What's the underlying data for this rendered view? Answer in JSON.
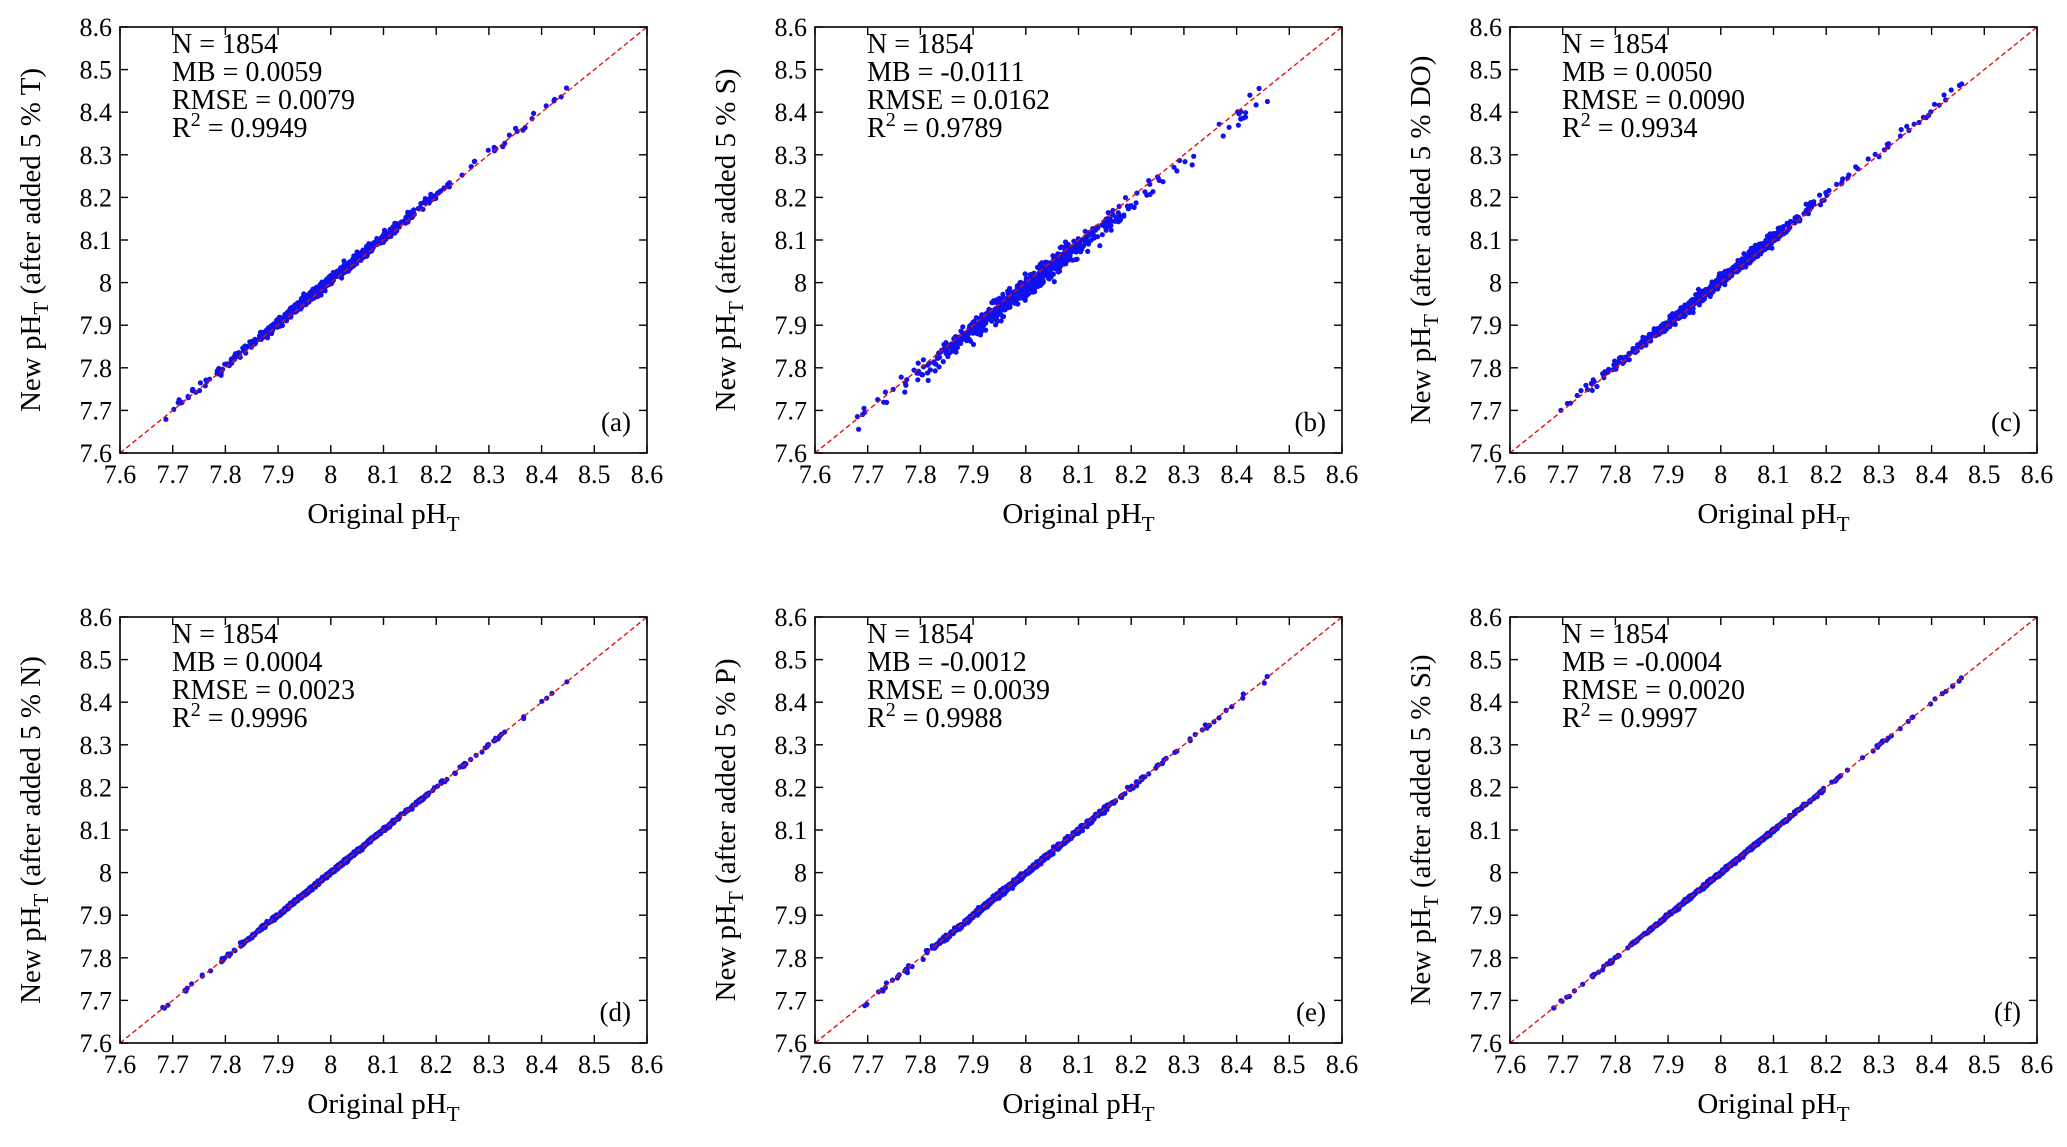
{
  "chart_data": [
    {
      "type": "scatter",
      "panel_label": "(a)",
      "variable": "T",
      "xlabel": "Original pH",
      "xlabel_sub": "T",
      "ylabel_pre": "New pH",
      "ylabel_sub": "T",
      "ylabel_post": " (after added 5 % T)",
      "xlim": [
        7.6,
        8.6
      ],
      "ylim": [
        7.6,
        8.6
      ],
      "xticks": [
        "7.6",
        "7.7",
        "7.8",
        "7.9",
        "8",
        "8.1",
        "8.2",
        "8.3",
        "8.4",
        "8.5",
        "8.6"
      ],
      "yticks": [
        "7.6",
        "7.7",
        "7.8",
        "7.9",
        "8",
        "8.1",
        "8.2",
        "8.3",
        "8.4",
        "8.5",
        "8.6"
      ],
      "stats": {
        "n": "N = 1854",
        "mb": "MB = 0.0059",
        "rmse": "RMSE = 0.0079",
        "r2_pre": "R",
        "r2_sup": "2",
        "r2_post": " = 0.9949"
      },
      "reference_line": "1:1",
      "scatter_spread": 0.006,
      "scatter_bias": 0.0059
    },
    {
      "type": "scatter",
      "panel_label": "(b)",
      "variable": "S",
      "xlabel": "Original pH",
      "xlabel_sub": "T",
      "ylabel_pre": "New pH",
      "ylabel_sub": "T",
      "ylabel_post": " (after added 5 % S)",
      "xlim": [
        7.6,
        8.6
      ],
      "ylim": [
        7.6,
        8.6
      ],
      "xticks": [
        "7.6",
        "7.7",
        "7.8",
        "7.9",
        "8",
        "8.1",
        "8.2",
        "8.3",
        "8.4",
        "8.5",
        "8.6"
      ],
      "yticks": [
        "7.6",
        "7.7",
        "7.8",
        "7.9",
        "8",
        "8.1",
        "8.2",
        "8.3",
        "8.4",
        "8.5",
        "8.6"
      ],
      "stats": {
        "n": "N = 1854",
        "mb": "MB = -0.0111",
        "rmse": "RMSE = 0.0162",
        "r2_pre": "R",
        "r2_sup": "2",
        "r2_post": " = 0.9789"
      },
      "reference_line": "1:1",
      "scatter_spread": 0.012,
      "scatter_bias": -0.0111
    },
    {
      "type": "scatter",
      "panel_label": "(c)",
      "variable": "DO",
      "xlabel": "Original pH",
      "xlabel_sub": "T",
      "ylabel_pre": "New pH",
      "ylabel_sub": "T",
      "ylabel_post": " (after added 5 % DO)",
      "xlim": [
        7.6,
        8.6
      ],
      "ylim": [
        7.6,
        8.6
      ],
      "xticks": [
        "7.6",
        "7.7",
        "7.8",
        "7.9",
        "8",
        "8.1",
        "8.2",
        "8.3",
        "8.4",
        "8.5",
        "8.6"
      ],
      "yticks": [
        "7.6",
        "7.7",
        "7.8",
        "7.9",
        "8",
        "8.1",
        "8.2",
        "8.3",
        "8.4",
        "8.5",
        "8.6"
      ],
      "stats": {
        "n": "N = 1854",
        "mb": "MB = 0.0050",
        "rmse": "RMSE = 0.0090",
        "r2_pre": "R",
        "r2_sup": "2",
        "r2_post": " = 0.9934"
      },
      "reference_line": "1:1",
      "scatter_spread": 0.007,
      "scatter_bias": 0.005
    },
    {
      "type": "scatter",
      "panel_label": "(d)",
      "variable": "N",
      "xlabel": "Original pH",
      "xlabel_sub": "T",
      "ylabel_pre": "New pH",
      "ylabel_sub": "T",
      "ylabel_post": " (after added 5 % N)",
      "xlim": [
        7.6,
        8.6
      ],
      "ylim": [
        7.6,
        8.6
      ],
      "xticks": [
        "7.6",
        "7.7",
        "7.8",
        "7.9",
        "8",
        "8.1",
        "8.2",
        "8.3",
        "8.4",
        "8.5",
        "8.6"
      ],
      "yticks": [
        "7.6",
        "7.7",
        "7.8",
        "7.9",
        "8",
        "8.1",
        "8.2",
        "8.3",
        "8.4",
        "8.5",
        "8.6"
      ],
      "stats": {
        "n": "N = 1854",
        "mb": "MB = 0.0004",
        "rmse": "RMSE = 0.0023",
        "r2_pre": "R",
        "r2_sup": "2",
        "r2_post": " = 0.9996"
      },
      "reference_line": "1:1",
      "scatter_spread": 0.0022,
      "scatter_bias": 0.0004
    },
    {
      "type": "scatter",
      "panel_label": "(e)",
      "variable": "P",
      "xlabel": "Original pH",
      "xlabel_sub": "T",
      "ylabel_pre": "New pH",
      "ylabel_sub": "T",
      "ylabel_post": " (after added 5 % P)",
      "xlim": [
        7.6,
        8.6
      ],
      "ylim": [
        7.6,
        8.6
      ],
      "xticks": [
        "7.6",
        "7.7",
        "7.8",
        "7.9",
        "8",
        "8.1",
        "8.2",
        "8.3",
        "8.4",
        "8.5",
        "8.6"
      ],
      "yticks": [
        "7.6",
        "7.7",
        "7.8",
        "7.9",
        "8",
        "8.1",
        "8.2",
        "8.3",
        "8.4",
        "8.5",
        "8.6"
      ],
      "stats": {
        "n": "N = 1854",
        "mb": "MB = -0.0012",
        "rmse": "RMSE = 0.0039",
        "r2_pre": "R",
        "r2_sup": "2",
        "r2_post": " = 0.9988"
      },
      "reference_line": "1:1",
      "scatter_spread": 0.0035,
      "scatter_bias": -0.0012
    },
    {
      "type": "scatter",
      "panel_label": "(f)",
      "variable": "Si",
      "xlabel": "Original pH",
      "xlabel_sub": "T",
      "ylabel_pre": "New pH",
      "ylabel_sub": "T",
      "ylabel_post": " (after added 5 % Si)",
      "xlim": [
        7.6,
        8.6
      ],
      "ylim": [
        7.6,
        8.6
      ],
      "xticks": [
        "7.6",
        "7.7",
        "7.8",
        "7.9",
        "8",
        "8.1",
        "8.2",
        "8.3",
        "8.4",
        "8.5",
        "8.6"
      ],
      "yticks": [
        "7.6",
        "7.7",
        "7.8",
        "7.9",
        "8",
        "8.1",
        "8.2",
        "8.3",
        "8.4",
        "8.5",
        "8.6"
      ],
      "stats": {
        "n": "N = 1854",
        "mb": "MB = -0.0004",
        "rmse": "RMSE = 0.0020",
        "r2_pre": "R",
        "r2_sup": "2",
        "r2_post": " = 0.9997"
      },
      "reference_line": "1:1",
      "scatter_spread": 0.002,
      "scatter_bias": -0.0004
    }
  ],
  "colors": {
    "points": "#1010f0",
    "reference_line": "#e01010",
    "axes": "#000000"
  }
}
